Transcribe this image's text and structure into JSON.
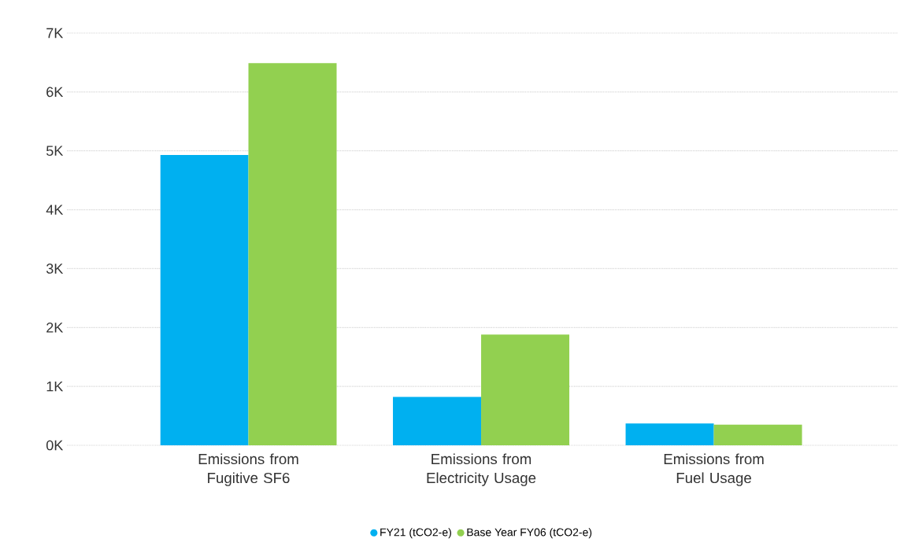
{
  "chart_data": {
    "type": "bar",
    "categories": [
      "Emissions from Fugitive SF6",
      "Emissions from Electricity Usage",
      "Emissions from Fuel Usage"
    ],
    "series": [
      {
        "name": "FY21 (tCO2-e)",
        "color": "#00b0f0",
        "values": [
          4930,
          820,
          370
        ]
      },
      {
        "name": "Base Year FY06 (tCO2-e)",
        "color": "#92d050",
        "values": [
          6490,
          1880,
          350
        ]
      }
    ],
    "ylim": [
      0,
      7000
    ],
    "yticks": [
      {
        "value": 0,
        "label": "0K"
      },
      {
        "value": 1000,
        "label": "1K"
      },
      {
        "value": 2000,
        "label": "2K"
      },
      {
        "value": 3000,
        "label": "3K"
      },
      {
        "value": 4000,
        "label": "4K"
      },
      {
        "value": 5000,
        "label": "5K"
      },
      {
        "value": 6000,
        "label": "6K"
      },
      {
        "value": 7000,
        "label": "7K"
      }
    ],
    "grid": "y",
    "legend": "bottom",
    "marker": "circle"
  }
}
